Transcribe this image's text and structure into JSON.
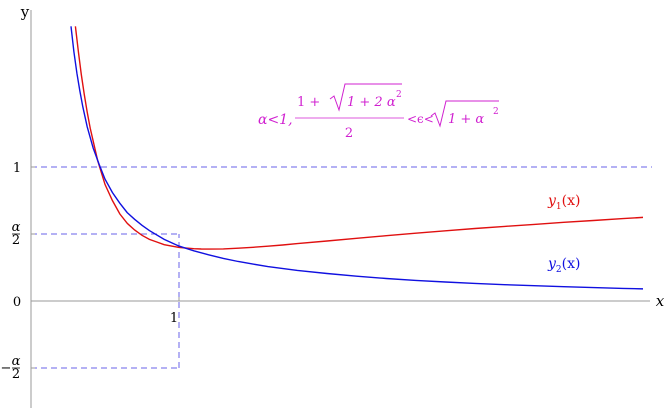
{
  "chart_data": {
    "type": "line",
    "title": "",
    "xlabel": "x",
    "ylabel": "y",
    "alpha": 1,
    "xlim": [
      0,
      4.8
    ],
    "ylim": [
      -0.8,
      2.0
    ],
    "grid": false,
    "annotation": {
      "condition": "α<1,",
      "numerator": "1 + √(1 + 2 α²)",
      "numerator_lead": "1 +",
      "radicand": "1 + 2 α",
      "exp": "2",
      "denominator": "2",
      "mid": "<ϵ<",
      "radicand2": "1 + α",
      "exp2": "2",
      "color": "#d020d0"
    },
    "yticks": [
      {
        "value": 1,
        "label": "1"
      },
      {
        "value": 0.5,
        "label": "α/2",
        "num": "α",
        "den": "2"
      },
      {
        "value": 0,
        "label": "0"
      },
      {
        "value": -0.5,
        "label": "−α/2",
        "sign": "−",
        "num": "α",
        "den": "2"
      }
    ],
    "xticks": [
      {
        "value": 1,
        "label": "1"
      }
    ],
    "reference_lines": [
      {
        "orient": "h",
        "y": 1,
        "x0": 0,
        "x1": 4.8
      },
      {
        "orient": "h",
        "y": 0.5,
        "x0": 0,
        "x1": 1
      },
      {
        "orient": "h",
        "y": -0.5,
        "x0": 0,
        "x1": 1
      },
      {
        "orient": "v",
        "x": 1,
        "y0": -0.5,
        "y1": 0.5
      }
    ],
    "series": [
      {
        "name": "y1(x)",
        "label_main": "y",
        "label_sub": "1",
        "label_tail": "(x)",
        "color": "#e01010",
        "x": [
          0.3,
          0.32,
          0.34,
          0.36,
          0.38,
          0.4,
          0.45,
          0.5,
          0.55,
          0.6,
          0.65,
          0.7,
          0.75,
          0.8,
          0.85,
          0.9,
          0.95,
          1.0,
          1.05,
          1.1,
          1.15,
          1.2,
          1.3,
          1.4,
          1.5,
          1.6,
          1.7,
          1.8,
          2.0,
          2.2,
          2.4,
          2.6,
          2.8,
          3.0,
          3.2,
          3.4,
          3.6,
          3.8,
          4.0,
          4.2,
          4.4,
          4.6,
          4.8
        ],
        "y": [
          2.05,
          1.86,
          1.69,
          1.54,
          1.41,
          1.29,
          1.05,
          0.87,
          0.75,
          0.65,
          0.58,
          0.53,
          0.49,
          0.46,
          0.44,
          0.42,
          0.41,
          0.4,
          0.395,
          0.39,
          0.388,
          0.387,
          0.389,
          0.394,
          0.401,
          0.409,
          0.418,
          0.428,
          0.448,
          0.468,
          0.487,
          0.506,
          0.524,
          0.541,
          0.557,
          0.572,
          0.587,
          0.601,
          0.615,
          0.628,
          0.641,
          0.653,
          0.665
        ]
      },
      {
        "name": "y2(x)",
        "label_main": "y",
        "label_sub": "2",
        "label_tail": "(x)",
        "color": "#1010e0",
        "x": [
          0.27,
          0.29,
          0.31,
          0.33,
          0.35,
          0.38,
          0.42,
          0.46,
          0.5,
          0.55,
          0.6,
          0.65,
          0.7,
          0.75,
          0.8,
          0.9,
          1.0,
          1.1,
          1.2,
          1.3,
          1.4,
          1.5,
          1.6,
          1.8,
          2.0,
          2.2,
          2.4,
          2.6,
          2.8,
          3.0,
          3.2,
          3.4,
          3.6,
          3.8,
          4.0,
          4.2,
          4.4,
          4.6,
          4.8
        ],
        "y": [
          2.05,
          1.86,
          1.7,
          1.57,
          1.45,
          1.3,
          1.14,
          1.02,
          0.91,
          0.81,
          0.73,
          0.66,
          0.61,
          0.565,
          0.525,
          0.46,
          0.41,
          0.375,
          0.345,
          0.318,
          0.295,
          0.275,
          0.257,
          0.228,
          0.205,
          0.185,
          0.168,
          0.154,
          0.142,
          0.131,
          0.122,
          0.114,
          0.107,
          0.1,
          0.094,
          0.089,
          0.084,
          0.079,
          0.075
        ]
      }
    ]
  }
}
